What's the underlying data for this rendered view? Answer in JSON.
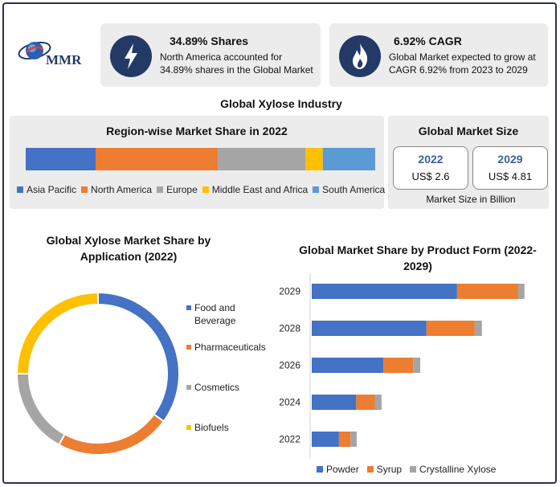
{
  "brand": {
    "logo_text": "MMR"
  },
  "stats": [
    {
      "icon": "lightning-icon",
      "title": "34.89% Shares",
      "desc_line1": "North America accounted for",
      "desc_line2": "34.89% shares in the Global Market"
    },
    {
      "icon": "flame-icon",
      "title": "6.92% CAGR",
      "desc_line1": "Global Market expected to grow at",
      "desc_line2": "CAGR 6.92% from 2023 to 2029"
    }
  ],
  "main_title": "Global Xylose Industry",
  "colors": {
    "asia": "#4472c4",
    "north_america": "#ed7d31",
    "europe": "#a5a5a5",
    "mea": "#ffc000",
    "south_america": "#5b9bd5",
    "navy": "#233a66"
  },
  "market_size": {
    "title": "Global Market Size",
    "boxes": [
      {
        "year": "2022",
        "value": "US$ 2.6"
      },
      {
        "year": "2029",
        "value": "US$ 4.81"
      }
    ],
    "note": "Market Size in Billion"
  },
  "chart_data": [
    {
      "type": "bar",
      "orientation": "horizontal-stacked-100",
      "title": "Region-wise Market Share in 2022",
      "series": [
        {
          "name": "Asia Pacific",
          "values": [
            20
          ]
        },
        {
          "name": "North America",
          "values": [
            35
          ]
        },
        {
          "name": "Europe",
          "values": [
            25
          ]
        },
        {
          "name": "Middle East and Africa",
          "values": [
            5
          ]
        },
        {
          "name": "South America",
          "values": [
            15
          ]
        }
      ],
      "legend": "bottom"
    },
    {
      "type": "pie",
      "subtype": "donut",
      "title_line1": "Global Xylose Market Share by",
      "title_line2": "Application (2022)",
      "categories": [
        "Food and Beverage",
        "Pharmaceuticals",
        "Cosmetics",
        "Biofuels"
      ],
      "legend_lines": [
        [
          "Food and",
          "Beverage"
        ],
        [
          "Pharmaceuticals"
        ],
        [
          "Cosmetics"
        ],
        [
          "Biofuels"
        ]
      ],
      "values": [
        35,
        23,
        17,
        25
      ],
      "legend": "right"
    },
    {
      "type": "bar",
      "orientation": "horizontal-stacked",
      "title_line1": "Global Market Share by Product Form (2022-",
      "title_line2": "2029)",
      "categories": [
        "2029",
        "2028",
        "2026",
        "2024",
        "2022"
      ],
      "series": [
        {
          "name": "Powder",
          "values": [
            3.04,
            2.4,
            1.5,
            0.93,
            0.57
          ]
        },
        {
          "name": "Syrup",
          "values": [
            1.28,
            1.01,
            0.62,
            0.39,
            0.24
          ]
        },
        {
          "name": "Crystalline Xylose",
          "values": [
            0.13,
            0.15,
            0.15,
            0.14,
            0.13
          ]
        }
      ],
      "xlim": [
        0,
        5
      ],
      "legend": "bottom"
    }
  ]
}
